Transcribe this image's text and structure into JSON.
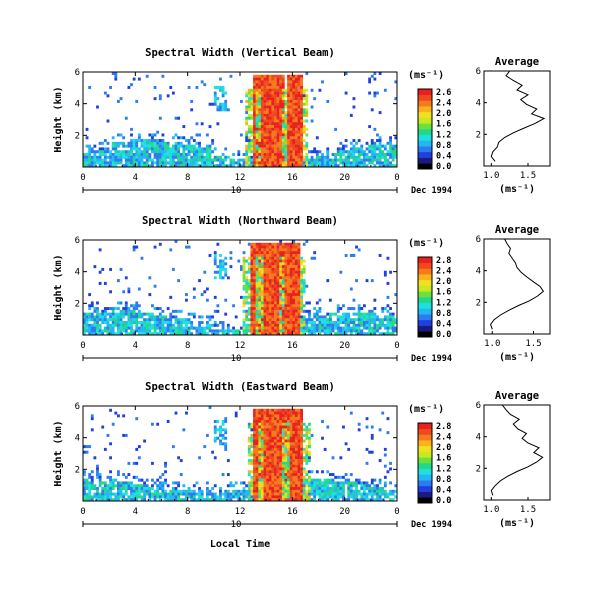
{
  "colors": {
    "scale": [
      "#000000",
      "#1a1a80",
      "#1f3fe0",
      "#2b7cf0",
      "#22b7f2",
      "#1fe0e0",
      "#22d88a",
      "#6ee03c",
      "#c8e820",
      "#f0e020",
      "#f7b21c",
      "#f57a1c",
      "#ee4a1e",
      "#e8201e"
    ],
    "background": "#ffffff"
  },
  "footer": {
    "xlabel": "Local Time"
  },
  "chart_data": [
    {
      "type": "heatmap",
      "title": "Spectral Width (Vertical Beam)",
      "ylabel": "Height (km)",
      "yticks": [
        "2",
        "4",
        "6"
      ],
      "ylim": [
        0,
        6
      ],
      "xticks": [
        "0",
        "4",
        "8",
        "12",
        "16",
        "20",
        "0"
      ],
      "xlim": [
        0,
        24
      ],
      "date_row": {
        "tick_label": "10",
        "date": "Dec 1994"
      },
      "colorbar": {
        "unit_label": "(ms⁻¹)",
        "ticks": [
          "2.6",
          "2.4",
          "2.0",
          "1.6",
          "1.2",
          "0.8",
          "0.4",
          "0.0"
        ]
      },
      "intense_columns_hours": [
        13.5,
        14.5,
        16.2
      ],
      "average_profile": {
        "title": "Average",
        "xlabel": "(ms⁻¹)",
        "xticks": [
          "1.0",
          "1.5"
        ],
        "xlim": [
          0.9,
          1.8
        ],
        "yticks": [
          "2",
          "4",
          "6"
        ],
        "ylim": [
          0,
          6
        ],
        "heights_km": [
          0.3,
          0.6,
          0.9,
          1.2,
          1.5,
          1.8,
          2.1,
          2.4,
          2.7,
          3.0,
          3.3,
          3.6,
          3.9,
          4.2,
          4.5,
          4.8,
          5.1,
          5.4,
          5.7,
          6.0
        ],
        "values": [
          1.05,
          1.0,
          1.02,
          1.08,
          1.1,
          1.18,
          1.3,
          1.45,
          1.6,
          1.72,
          1.55,
          1.62,
          1.48,
          1.4,
          1.5,
          1.35,
          1.42,
          1.3,
          1.2,
          1.25
        ]
      }
    },
    {
      "type": "heatmap",
      "title": "Spectral Width (Northward Beam)",
      "ylabel": "Height (km)",
      "yticks": [
        "2",
        "4",
        "6"
      ],
      "ylim": [
        0,
        6
      ],
      "xticks": [
        "0",
        "4",
        "8",
        "12",
        "16",
        "20",
        "0"
      ],
      "xlim": [
        0,
        24
      ],
      "date_row": {
        "tick_label": "10",
        "date": "Dec 1994"
      },
      "colorbar": {
        "unit_label": "(ms⁻¹)",
        "ticks": [
          "2.8",
          "2.4",
          "2.0",
          "1.6",
          "1.2",
          "0.8",
          "0.4",
          "0.0"
        ]
      },
      "intense_columns_hours": [
        13.3,
        14.6,
        16.0
      ],
      "average_profile": {
        "title": "Average",
        "xlabel": "(ms⁻¹)",
        "xticks": [
          "1.0",
          "1.5"
        ],
        "xlim": [
          0.9,
          1.7
        ],
        "yticks": [
          "2",
          "4",
          "6"
        ],
        "ylim": [
          0,
          6
        ],
        "heights_km": [
          0.3,
          0.6,
          0.9,
          1.2,
          1.5,
          1.8,
          2.1,
          2.4,
          2.7,
          3.0,
          3.3,
          3.6,
          3.9,
          4.2,
          4.5,
          4.8,
          5.1,
          5.4,
          5.7,
          6.0
        ],
        "values": [
          1.0,
          0.98,
          1.02,
          1.1,
          1.2,
          1.32,
          1.45,
          1.55,
          1.62,
          1.58,
          1.5,
          1.42,
          1.35,
          1.3,
          1.28,
          1.24,
          1.2,
          1.22,
          1.18,
          1.15
        ]
      }
    },
    {
      "type": "heatmap",
      "title": "Spectral Width (Eastward Beam)",
      "ylabel": "Height (km)",
      "yticks": [
        "2",
        "4",
        "6"
      ],
      "ylim": [
        0,
        6
      ],
      "xticks": [
        "0",
        "4",
        "8",
        "12",
        "16",
        "20",
        "0"
      ],
      "xlim": [
        0,
        24
      ],
      "date_row": {
        "tick_label": "10",
        "date": "Dec 1994"
      },
      "colorbar": {
        "unit_label": "(ms⁻¹)",
        "ticks": [
          "2.8",
          "2.4",
          "2.0",
          "1.6",
          "1.2",
          "0.8",
          "0.4",
          "0.0"
        ]
      },
      "intense_columns_hours": [
        13.6,
        14.8,
        16.3
      ],
      "average_profile": {
        "title": "Average",
        "xlabel": "(ms⁻¹)",
        "xticks": [
          "1.0",
          "1.5"
        ],
        "xlim": [
          0.9,
          1.8
        ],
        "yticks": [
          "2",
          "4",
          "6"
        ],
        "ylim": [
          0,
          6
        ],
        "heights_km": [
          0.3,
          0.6,
          0.9,
          1.2,
          1.5,
          1.8,
          2.1,
          2.4,
          2.7,
          3.0,
          3.3,
          3.6,
          3.9,
          4.2,
          4.5,
          4.8,
          5.1,
          5.4,
          5.7,
          6.0
        ],
        "values": [
          1.02,
          1.0,
          1.05,
          1.12,
          1.22,
          1.35,
          1.5,
          1.62,
          1.7,
          1.58,
          1.65,
          1.5,
          1.42,
          1.48,
          1.36,
          1.3,
          1.38,
          1.26,
          1.2,
          1.15
        ]
      }
    }
  ]
}
